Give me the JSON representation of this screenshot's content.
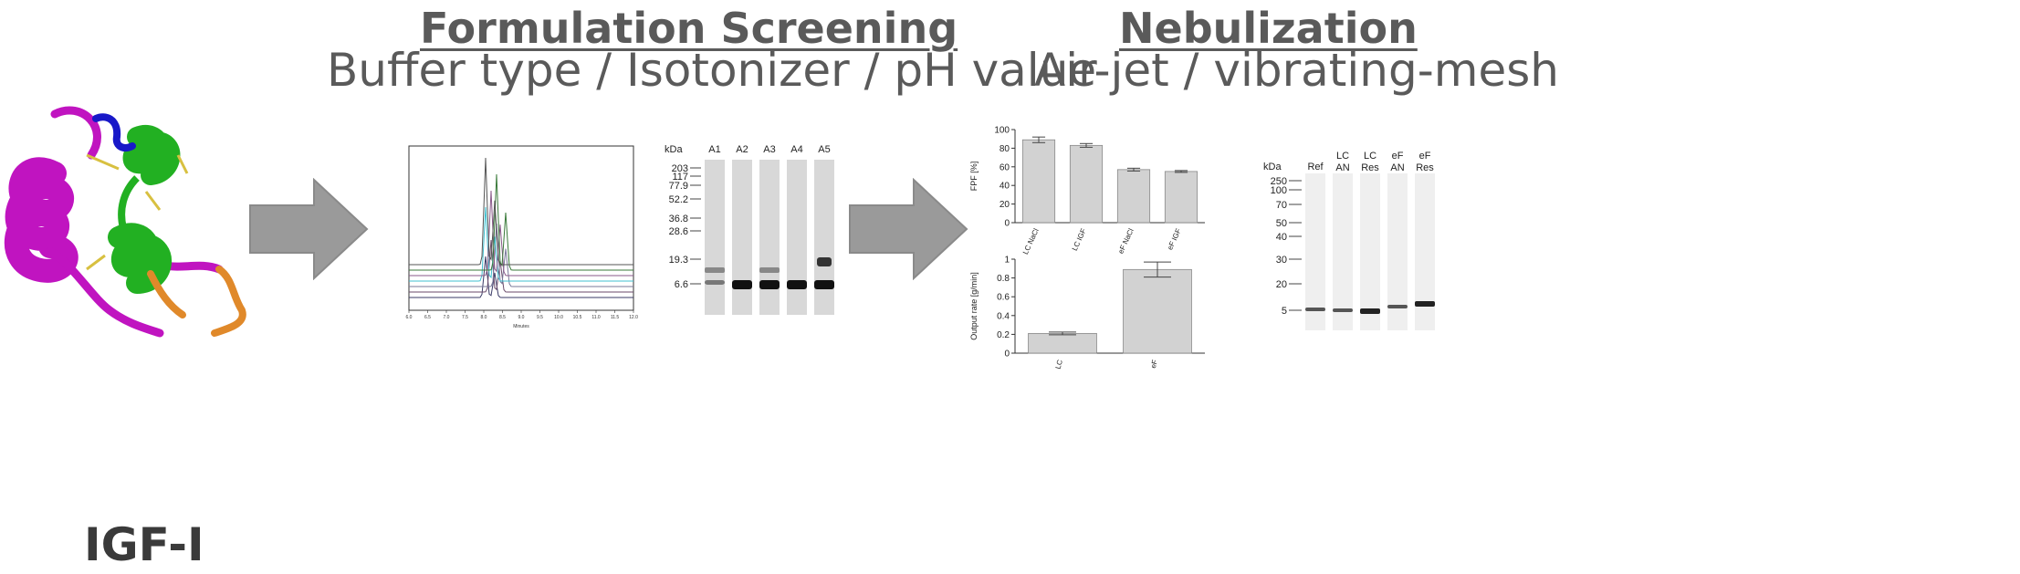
{
  "headings": {
    "formulation_title": "Formulation Screening",
    "formulation_sub": "Buffer type / Isotonizer / pH value",
    "nebulization_title": "Nebulization",
    "nebulization_sub": "Air-jet / vibrating-mesh"
  },
  "molecule": {
    "label": "IGF-I",
    "colors": {
      "helix_a": "#c014c0",
      "helix_b": "#22b022",
      "loop_n": "#1818c8",
      "loop_c": "#e0892a",
      "disulfide": "#d8c040"
    }
  },
  "arrow_color": "#9a9a9a",
  "chromatogram": {
    "x_label": "Minutes",
    "x_ticks": [
      "6.0",
      "6.5",
      "7.0",
      "7.5",
      "8.0",
      "8.5",
      "9.0",
      "9.5",
      "10.0",
      "10.5",
      "11.0",
      "11.5",
      "12.0"
    ],
    "trace_colors": [
      "#3a3a66",
      "#6a4a6a",
      "#7a7a9a",
      "#40c0d0",
      "#8a5a8a",
      "#3a7a3a",
      "#555555"
    ]
  },
  "gel1": {
    "unit_label": "kDa",
    "lanes": [
      "A1",
      "A2",
      "A3",
      "A4",
      "A5"
    ],
    "markers": [
      "203",
      "117",
      "77.9",
      "52.2",
      "36.8",
      "28.6",
      "19.3",
      "6.6"
    ]
  },
  "chart_data": [
    {
      "type": "bar",
      "title": "",
      "xlabel": "",
      "ylabel": "FPF [%]",
      "categories": [
        "LC NaCl",
        "LC IGF",
        "eF NaCl",
        "eF IGF"
      ],
      "values": [
        89,
        83,
        57,
        55
      ],
      "errors": [
        3,
        2,
        1.5,
        1
      ],
      "ylim": [
        0,
        100
      ],
      "y_ticks": [
        "0",
        "20",
        "40",
        "60",
        "80",
        "100"
      ]
    },
    {
      "type": "bar",
      "title": "",
      "xlabel": "",
      "ylabel": "Output rate [g/min]",
      "categories": [
        "LC",
        "eF"
      ],
      "values": [
        0.21,
        0.89
      ],
      "errors": [
        0.015,
        0.08
      ],
      "ylim": [
        0,
        1
      ],
      "y_ticks": [
        "0",
        "0.2",
        "0.4",
        "0.6",
        "0.8",
        "1"
      ]
    }
  ],
  "gel2": {
    "unit_label": "kDa",
    "lanes": [
      [
        "Ref"
      ],
      [
        "LC",
        "AN"
      ],
      [
        "LC",
        "Res"
      ],
      [
        "eF",
        "AN"
      ],
      [
        "eF",
        "Res"
      ]
    ],
    "markers": [
      "250",
      "100",
      "70",
      "50",
      "40",
      "30",
      "20",
      "5"
    ]
  }
}
